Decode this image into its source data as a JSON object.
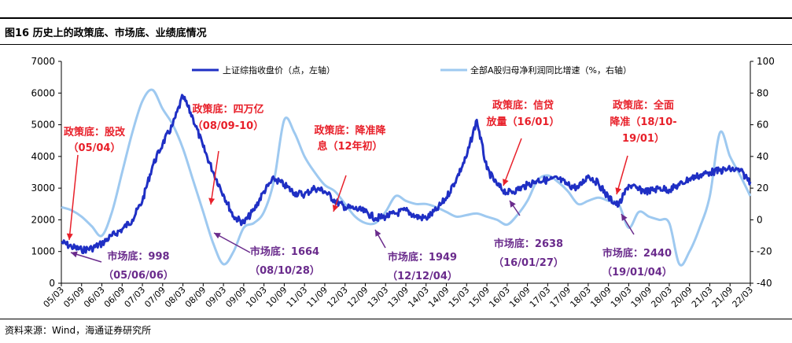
{
  "figure_title": "图16 历史上的政策底、市场底、业绩底情况",
  "source": "资料来源：Wind，海通证券研究所",
  "colors": {
    "index_line": "#1f2fc4",
    "profit_line": "#9ec9f0",
    "policy_text": "#e8202a",
    "market_text": "#6a2b8c",
    "axis": "#000000"
  },
  "chart_data": {
    "type": "line",
    "title": "",
    "xlabel": "",
    "x_ticks": [
      "05/03",
      "05/09",
      "06/03",
      "06/09",
      "07/03",
      "07/09",
      "08/03",
      "08/09",
      "09/03",
      "09/09",
      "10/03",
      "10/09",
      "11/03",
      "11/09",
      "12/03",
      "12/09",
      "13/03",
      "13/09",
      "14/03",
      "14/09",
      "15/03",
      "15/09",
      "16/03",
      "16/09",
      "17/03",
      "17/09",
      "18/03",
      "18/09",
      "19/03",
      "19/09",
      "20/03",
      "20/09",
      "21/03",
      "21/09",
      "22/03"
    ],
    "y_left": {
      "label": "上证综指收盘价（点，左轴）",
      "lim": [
        0,
        7000
      ],
      "ticks": [
        0,
        1000,
        2000,
        3000,
        4000,
        5000,
        6000,
        7000
      ]
    },
    "y_right": {
      "label": "全部A股归母净利润同比增速（%，右轴）",
      "lim": [
        -40,
        100
      ],
      "ticks": [
        -40,
        -20,
        0,
        20,
        40,
        60,
        80,
        100
      ]
    },
    "legend_position": "top",
    "series": [
      {
        "name": "上证综指收盘价（点，左轴）",
        "axis": "left",
        "t": [
          0,
          0.5,
          1,
          1.5,
          2,
          2.5,
          3,
          3.5,
          4,
          4.5,
          5,
          5.5,
          6,
          6.5,
          7,
          7.5,
          8,
          8.5,
          9,
          9.5,
          10,
          10.5,
          11,
          11.5,
          12,
          12.5,
          13,
          13.5,
          14,
          14.5,
          15,
          15.5,
          16,
          16.5,
          17,
          17.5,
          18,
          18.5,
          19,
          19.5,
          20,
          20.5,
          21,
          21.5,
          22,
          22.5,
          23,
          23.5,
          24,
          24.5,
          25,
          25.5,
          26,
          26.5,
          27,
          27.5,
          28,
          28.5,
          29,
          29.5,
          30,
          30.5,
          31,
          31.5,
          32,
          32.5,
          33,
          33.5,
          34
        ],
        "values": [
          1300,
          1150,
          1050,
          1100,
          1250,
          1500,
          1700,
          2000,
          2600,
          3700,
          4400,
          5000,
          5900,
          5200,
          4300,
          3500,
          2800,
          2100,
          1900,
          2300,
          2900,
          3300,
          3100,
          2850,
          2800,
          3000,
          2900,
          2600,
          2400,
          2350,
          2250,
          2050,
          2100,
          2200,
          2300,
          2100,
          2050,
          2300,
          2700,
          3300,
          4000,
          5150,
          3600,
          3100,
          2850,
          2950,
          3100,
          3250,
          3250,
          3300,
          3100,
          3000,
          3400,
          3150,
          2700,
          2450,
          3100,
          2950,
          2900,
          3000,
          2950,
          3100,
          3300,
          3400,
          3500,
          3550,
          3600,
          3550,
          3200
        ]
      },
      {
        "name": "全部A股归母净利润同比增速（%，右轴）",
        "axis": "right",
        "t": [
          0,
          0.5,
          1,
          1.5,
          2,
          2.5,
          3,
          3.5,
          4,
          4.5,
          5,
          5.5,
          6,
          6.5,
          7,
          7.5,
          8,
          8.5,
          9,
          9.5,
          10,
          10.5,
          11,
          11.5,
          12,
          12.5,
          13,
          13.5,
          14,
          14.5,
          15,
          15.5,
          16,
          16.5,
          17,
          17.5,
          18,
          18.5,
          19,
          19.5,
          20,
          20.5,
          21,
          21.5,
          22,
          22.5,
          23,
          23.5,
          24,
          24.5,
          25,
          25.5,
          26,
          26.5,
          27,
          27.5,
          28,
          28.5,
          29,
          29.5,
          30,
          30.5,
          31,
          31.5,
          32,
          32.5,
          33,
          33.5,
          34
        ],
        "values": [
          8,
          6,
          2,
          -4,
          -10,
          5,
          30,
          55,
          75,
          82,
          70,
          60,
          45,
          25,
          5,
          -15,
          -28,
          -20,
          -5,
          -2,
          5,
          25,
          63,
          55,
          40,
          30,
          22,
          18,
          10,
          2,
          -2,
          -2,
          5,
          15,
          12,
          10,
          10,
          8,
          5,
          2,
          3,
          4,
          2,
          0,
          -3,
          3,
          12,
          25,
          28,
          24,
          18,
          10,
          12,
          14,
          12,
          10,
          -5,
          5,
          2,
          0,
          -2,
          -28,
          -20,
          -5,
          15,
          55,
          40,
          28,
          15
        ]
      }
    ],
    "annotations": [
      {
        "kind": "policy",
        "lines": [
          "政策底：股改",
          "（05/04）"
        ],
        "points_to": "05/04"
      },
      {
        "kind": "policy",
        "lines": [
          "政策底：四万亿",
          "（08/09-10）"
        ],
        "points_to": "08/09-10"
      },
      {
        "kind": "policy",
        "lines": [
          "政策底：降准降",
          "息（12年初）"
        ],
        "points_to": "12年初"
      },
      {
        "kind": "policy",
        "lines": [
          "政策底：信贷",
          "放量（16/01）"
        ],
        "points_to": "16/01"
      },
      {
        "kind": "policy",
        "lines": [
          "政策底：全面",
          "降准（18/10-",
          "19/01）"
        ],
        "points_to": "18/10-19/01"
      },
      {
        "kind": "market",
        "lines": [
          "市场底：998",
          "（05/06/06）"
        ],
        "points_to": "05/06/06"
      },
      {
        "kind": "market",
        "lines": [
          "市场底：1664",
          "（08/10/28）"
        ],
        "points_to": "08/10/28"
      },
      {
        "kind": "market",
        "lines": [
          "市场底：1949",
          "（12/12/04）"
        ],
        "points_to": "12/12/04"
      },
      {
        "kind": "market",
        "lines": [
          "市场底：2638",
          "（16/01/27）"
        ],
        "points_to": "16/01/27"
      },
      {
        "kind": "market",
        "lines": [
          "市场底：2440",
          "（19/01/04）"
        ],
        "points_to": "19/01/04"
      }
    ]
  }
}
